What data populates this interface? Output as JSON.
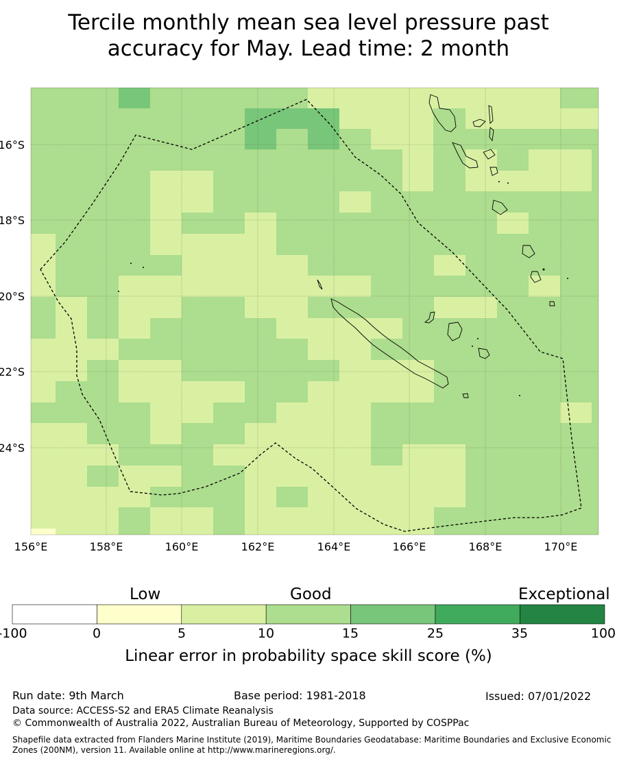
{
  "title": {
    "line1": "Tercile monthly mean sea level pressure past",
    "line2": "accuracy for May. Lead time: 2 month"
  },
  "map": {
    "lat_labels": [
      "16°S",
      "18°S",
      "20°S",
      "22°S",
      "24°S"
    ],
    "lon_labels": [
      "156°E",
      "158°E",
      "160°E",
      "162°E",
      "164°E",
      "166°E",
      "168°E",
      "170°E"
    ]
  },
  "colorbar": {
    "categories": [
      "Low",
      "Good",
      "Exceptional"
    ],
    "ticks": [
      "-100",
      "0",
      "5",
      "10",
      "15",
      "25",
      "35",
      "100"
    ],
    "colors": [
      "#ffffff",
      "#ffffcc",
      "#d9f0a3",
      "#addd8e",
      "#78c679",
      "#41ab5d",
      "#238443"
    ],
    "label": "Linear error in probability space skill score (%)"
  },
  "footer": {
    "run_date": "Run date: 9th March",
    "base_period": "Base period: 1981-2018",
    "issued": "Issued: 07/01/2022",
    "data_source": "Data source: ACCESS-S2 and ERA5 Climate Reanalysis",
    "copyright": "© Commonwealth of Australia 2022, Australian Bureau of Meteorology, Supported by COSPPac",
    "shapefile": "Shapefile data extracted from Flanders Marine Institute (2019), Maritime Boundaries Geodatabase: Maritime Boundaries and Exclusive Economic Zones (200NM), version 11. Available online at http://www.marineregions.org/."
  }
}
